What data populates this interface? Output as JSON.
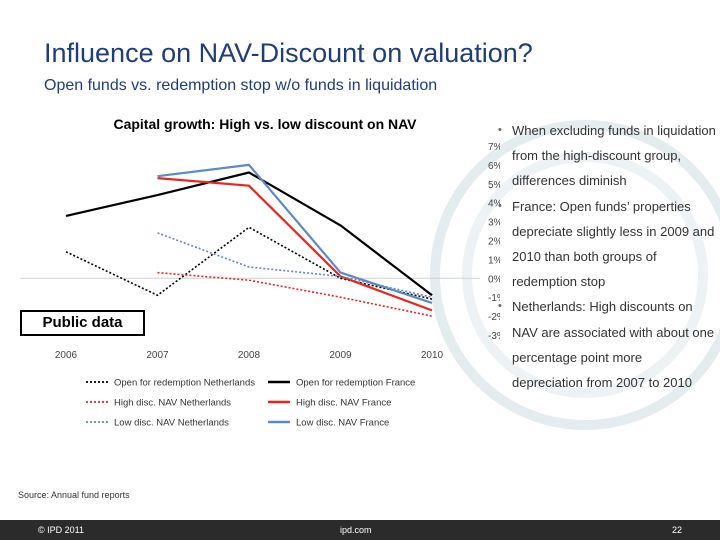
{
  "slide": {
    "title": "Influence on NAV-Discount on valuation?",
    "subtitle": "Open funds vs. redemption stop w/o funds in liquidation",
    "public_label": "Public data",
    "bullets": [
      "When excluding funds in liquidation from the high-discount group, differences diminish",
      "France: Open funds’ properties depreciate slightly less in 2009 and 2010 than both groups of redemption stop",
      "Netherlands: High discounts on NAV are associated with about one percentage point more depreciation from 2007 to 2010"
    ],
    "source": "Source: Annual fund reports"
  },
  "footer": {
    "left": "© IPD 2011",
    "center": "ipd.com",
    "page": "22"
  },
  "colors": {
    "title": "#1f3d7a",
    "black": "#000000",
    "red": "#e8251f",
    "blue": "#5b8ac6",
    "footer_bg": "#2b2b2b"
  },
  "chart_data": {
    "type": "line",
    "title": "Capital growth: High vs. low discount on NAV",
    "x": [
      "2006",
      "2007",
      "2008",
      "2009",
      "2010"
    ],
    "y_ticks": [
      "7%",
      "6%",
      "5%",
      "4%",
      "3%",
      "2%",
      "1%",
      "0%",
      "-1%",
      "-2%",
      "-3%"
    ],
    "ylim": [
      -3,
      7
    ],
    "y_axis_side": "right",
    "legend_position": "bottom",
    "series": [
      {
        "name": "Open for redemption Netherlands",
        "color": "#000000",
        "style": "dotted",
        "values": [
          1.4,
          -0.9,
          2.7,
          0.0,
          -1.1
        ]
      },
      {
        "name": "Open for redemption France",
        "color": "#000000",
        "style": "solid",
        "values": [
          3.3,
          4.4,
          5.6,
          2.8,
          -0.9
        ]
      },
      {
        "name": "High disc. NAV Netherlands",
        "color": "#e8251f",
        "style": "dotted",
        "values": [
          null,
          0.3,
          -0.1,
          -1.0,
          -2.0
        ]
      },
      {
        "name": "High disc. NAV France",
        "color": "#e8251f",
        "style": "solid",
        "values": [
          null,
          5.3,
          4.9,
          0.1,
          -1.7
        ]
      },
      {
        "name": "Low disc. NAV Netherlands",
        "color": "#5b8ac6",
        "style": "dotted",
        "values": [
          null,
          2.4,
          0.6,
          0.1,
          -1.0
        ]
      },
      {
        "name": "Low disc. NAV France",
        "color": "#5b8ac6",
        "style": "solid",
        "values": [
          null,
          5.4,
          6.0,
          0.3,
          -1.3
        ]
      }
    ]
  }
}
